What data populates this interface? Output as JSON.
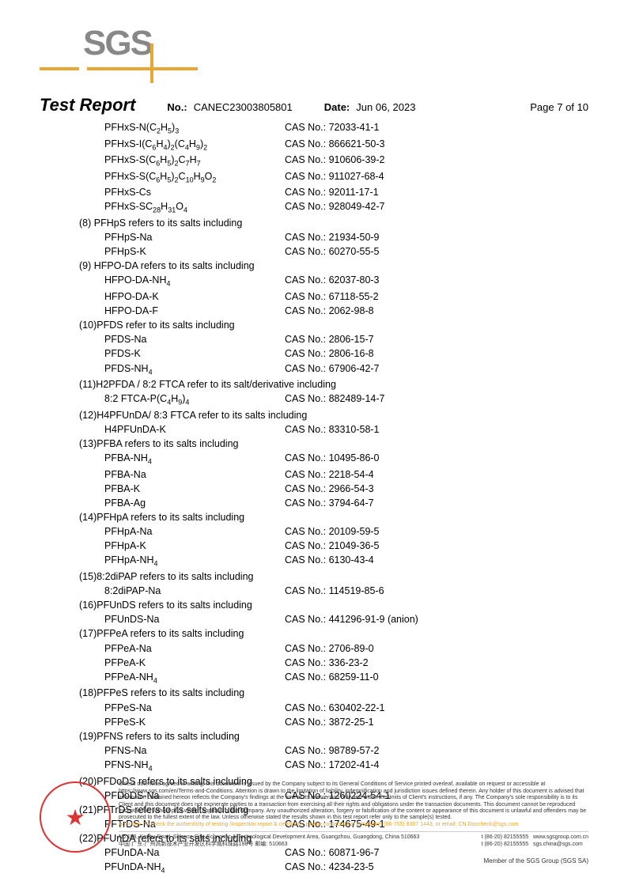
{
  "logo": "SGS",
  "header": {
    "title": "Test Report",
    "no_label": "No.:",
    "no_value": "CANEC23003805801",
    "date_label": "Date:",
    "date_value": "Jun 06, 2023",
    "page": "Page 7 of 10"
  },
  "sections": [
    {
      "head": null,
      "items": [
        {
          "name": "PFHxS-N(C₂H₅)₃",
          "cas": "CAS No.: 72033-41-1"
        },
        {
          "name": "PFHxS-I(C₆H₄)₂(C₄H₉)₂",
          "cas": "CAS No.: 866621-50-3"
        },
        {
          "name": "PFHxS-S(C₆H₅)₂C₇H₇",
          "cas": "CAS No.: 910606-39-2"
        },
        {
          "name": "PFHxS-S(C₆H₅)₂C₁₀H₉O₂",
          "cas": "CAS No.: 911027-68-4"
        },
        {
          "name": "PFHxS-Cs",
          "cas": "CAS No.: 92011-17-1"
        },
        {
          "name": "PFHxS-SC₂₈H₃₁O₄",
          "cas": "CAS No.: 928049-42-7"
        }
      ]
    },
    {
      "head": "(8) PFHpS refers to its salts including",
      "items": [
        {
          "name": "PFHpS-Na",
          "cas": "CAS No.: 21934-50-9"
        },
        {
          "name": "PFHpS-K",
          "cas": "CAS No.: 60270-55-5"
        }
      ]
    },
    {
      "head": "(9) HFPO-DA refers to its salts including",
      "items": [
        {
          "name": "HFPO-DA-NH₄",
          "cas": "CAS No.: 62037-80-3"
        },
        {
          "name": "HFPO-DA-K",
          "cas": "CAS No.: 67118-55-2"
        },
        {
          "name": "HFPO-DA-F",
          "cas": "CAS No.: 2062-98-8"
        }
      ]
    },
    {
      "head": "(10)PFDS refer to its salts including",
      "items": [
        {
          "name": "PFDS-Na",
          "cas": "CAS No.: 2806-15-7"
        },
        {
          "name": "PFDS-K",
          "cas": "CAS No.: 2806-16-8"
        },
        {
          "name": "PFDS-NH₄",
          "cas": "CAS No.: 67906-42-7"
        }
      ]
    },
    {
      "head": "(11)H2PFDA / 8:2 FTCA refer to its salt/derivative including",
      "items": [
        {
          "name": "8:2 FTCA-P(C₄H₉)₄",
          "cas": "CAS No.: 882489-14-7"
        }
      ]
    },
    {
      "head": "(12)H4PFUnDA/ 8:3 FTCA refer to its salts including",
      "items": [
        {
          "name": "H4PFUnDA-K",
          "cas": "CAS No.: 83310-58-1"
        }
      ]
    },
    {
      "head": "(13)PFBA refers to its salts including",
      "items": [
        {
          "name": "PFBA-NH₄",
          "cas": "CAS No.: 10495-86-0"
        },
        {
          "name": "PFBA-Na",
          "cas": "CAS No.: 2218-54-4"
        },
        {
          "name": "PFBA-K",
          "cas": "CAS No.: 2966-54-3"
        },
        {
          "name": "PFBA-Ag",
          "cas": "CAS No.: 3794-64-7"
        }
      ]
    },
    {
      "head": "(14)PFHpA refers to its salts including",
      "items": [
        {
          "name": "PFHpA-Na",
          "cas": "CAS No.: 20109-59-5"
        },
        {
          "name": "PFHpA-K",
          "cas": "CAS No.: 21049-36-5"
        },
        {
          "name": "PFHpA-NH₄",
          "cas": "CAS No.: 6130-43-4"
        }
      ]
    },
    {
      "head": "(15)8:2diPAP refers to its salts including",
      "items": [
        {
          "name": "8:2diPAP-Na",
          "cas": "CAS No.: 114519-85-6"
        }
      ]
    },
    {
      "head": "(16)PFUnDS refers to its salts including",
      "items": [
        {
          "name": "PFUnDS-Na",
          "cas": "CAS No.: 441296-91-9 (anion)"
        }
      ]
    },
    {
      "head": "(17)PFPeA refers to its salts including",
      "items": [
        {
          "name": "PFPeA-Na",
          "cas": "CAS No.: 2706-89-0"
        },
        {
          "name": "PFPeA-K",
          "cas": "CAS No.: 336-23-2"
        },
        {
          "name": "PFPeA-NH₄",
          "cas": "CAS No.: 68259-11-0"
        }
      ]
    },
    {
      "head": "(18)PFPeS refers to its salts including",
      "items": [
        {
          "name": "PFPeS-Na",
          "cas": "CAS No.: 630402-22-1"
        },
        {
          "name": "PFPeS-K",
          "cas": "CAS No.: 3872-25-1"
        }
      ]
    },
    {
      "head": "(19)PFNS refers to its salts including",
      "items": [
        {
          "name": "PFNS-Na",
          "cas": "CAS No.: 98789-57-2"
        },
        {
          "name": "PFNS-NH₄",
          "cas": "CAS No.: 17202-41-4"
        }
      ]
    },
    {
      "head": "(20)PFDoDS refers to its salts including",
      "items": [
        {
          "name": "PFDoDS-Na",
          "cas": "CAS No.: 1260224-54-1"
        }
      ]
    },
    {
      "head": "(21)PFTrDS refers to its salts including",
      "items": [
        {
          "name": "PFTrDS-Na",
          "cas": "CAS No.: 174675-49-1"
        }
      ]
    },
    {
      "head": "(22)PFUnDA refers to its salts including",
      "items": [
        {
          "name": "PFUnDA-Na",
          "cas": "CAS No.: 60871-96-7"
        },
        {
          "name": "PFUnDA-NH₄",
          "cas": "CAS No.: 4234-23-5"
        }
      ]
    }
  ],
  "footer": {
    "disclaimer": "Unless otherwise agreed in writing, this document is issued by the Company subject to its General Conditions of Service printed overleaf, available on request or accessible at https://www.sgs.com/en/Terms-and-Conditions. Attention is drawn to the limitation of liability, indemnification and jurisdiction issues defined therein. Any holder of this document is advised that information contained hereon reflects the Company's findings at the time of its intervention only and within the limits of Client's instructions, if any. The Company's sole responsibility is to its Client and this document does not exonerate parties to a transaction from exercising all their rights and obligations under the transaction documents. This document cannot be reproduced except in full, without prior written approval of the Company. Any unauthorized alteration, forgery or falsification of the content or appearance of this document is unlawful and offenders may be prosecuted to the fullest extent of the law. Unless otherwise stated the results shown in this test report refer only to the sample(s) tested.",
    "attention": "Attention: To check the authenticity of testing /inspection report & certificate, please contact us at telephone: (86-755) 8307 1443, or email: CN.Doccheck@sgs.com",
    "addr_en": "No.198, Kezhu Road, Science City, Economic & Technological Development Area, Guangzhou, Guangdong, China 510663",
    "addr_cn": "中国·广东·广州高新技术产业开发区科学城科珠路198号    邮编: 510663",
    "tel1": "t (86-20) 82155555",
    "tel2": "t (86-20) 82155555",
    "web1": "www.sgsgroup.com.cn",
    "web2": "sgs.china@sgs.com",
    "member": "Member of the SGS Group (SGS SA)"
  }
}
